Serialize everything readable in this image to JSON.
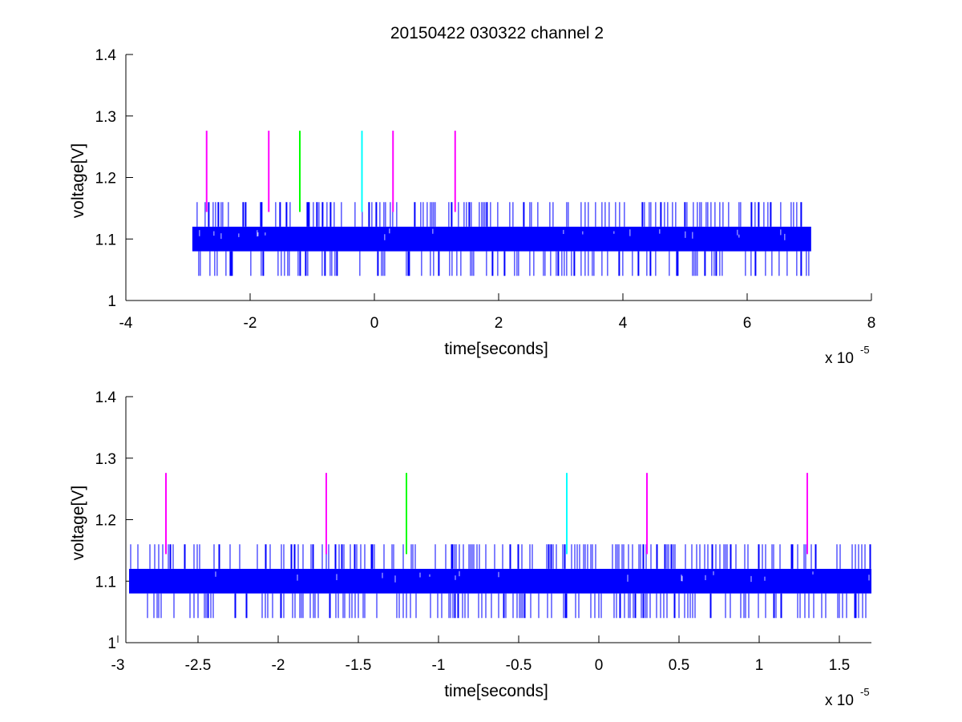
{
  "figure": {
    "title": "20150422 030322 channel 2"
  },
  "chart_data": [
    {
      "type": "line",
      "title": "20150422 030322 channel 2",
      "xlabel": "time[seconds]",
      "ylabel": "voltage[V]",
      "x_multiplier_text": "x 10",
      "x_multiplier_exponent": "-5",
      "xlim": [
        -4,
        8
      ],
      "ylim": [
        1,
        1.4
      ],
      "xticks": [
        -4,
        -2,
        0,
        2,
        4,
        6,
        8
      ],
      "xtick_labels": [
        "-4",
        "-2",
        "0",
        "2",
        "4",
        "6",
        "8"
      ],
      "yticks": [
        1,
        1.1,
        1.2,
        1.3,
        1.4
      ],
      "ytick_labels": [
        "1",
        "1.1",
        "1.2",
        "1.3",
        "1.4"
      ],
      "grid": false,
      "series": [
        {
          "color": "#0000ff",
          "x_range": [
            -2.93,
            7.03
          ],
          "baseline_band": [
            1.08,
            1.12
          ],
          "spike_high": 1.16,
          "spike_low": 1.04
        }
      ],
      "markers": [
        {
          "x": -2.7,
          "y_range": [
            1.144,
            1.276
          ],
          "color": "#ff00ff"
        },
        {
          "x": -1.7,
          "y_range": [
            1.144,
            1.276
          ],
          "color": "#ff00ff"
        },
        {
          "x": -1.2,
          "y_range": [
            1.144,
            1.276
          ],
          "color": "#00ff00"
        },
        {
          "x": -0.2,
          "y_range": [
            1.144,
            1.276
          ],
          "color": "#00ffff"
        },
        {
          "x": 0.3,
          "y_range": [
            1.144,
            1.276
          ],
          "color": "#ff00ff"
        },
        {
          "x": 1.3,
          "y_range": [
            1.144,
            1.276
          ],
          "color": "#ff00ff"
        }
      ]
    },
    {
      "type": "line",
      "title": "",
      "xlabel": "time[seconds]",
      "ylabel": "voltage[V]",
      "x_multiplier_text": "x 10",
      "x_multiplier_exponent": "-5",
      "xlim": [
        -2.95,
        1.7
      ],
      "ylim": [
        1,
        1.4
      ],
      "xticks": [
        -3,
        -2.5,
        -2,
        -1.5,
        -1,
        -0.5,
        0,
        0.5,
        1,
        1.5
      ],
      "xtick_labels": [
        "-3",
        "-2.5",
        "-2",
        "-1.5",
        "-1",
        "-0.5",
        "0",
        "0.5",
        "1",
        "1.5"
      ],
      "yticks": [
        1,
        1.1,
        1.2,
        1.3,
        1.4
      ],
      "ytick_labels": [
        "1",
        "1.1",
        "1.2",
        "1.3",
        "1.4"
      ],
      "grid": false,
      "series": [
        {
          "color": "#0000ff",
          "x_range": [
            -2.93,
            1.7
          ],
          "baseline_band": [
            1.08,
            1.12
          ],
          "spike_high": 1.16,
          "spike_low": 1.04
        }
      ],
      "markers": [
        {
          "x": -2.7,
          "y_range": [
            1.144,
            1.276
          ],
          "color": "#ff00ff"
        },
        {
          "x": -1.7,
          "y_range": [
            1.144,
            1.276
          ],
          "color": "#ff00ff"
        },
        {
          "x": -1.2,
          "y_range": [
            1.144,
            1.276
          ],
          "color": "#00ff00"
        },
        {
          "x": -0.2,
          "y_range": [
            1.144,
            1.276
          ],
          "color": "#00ffff"
        },
        {
          "x": 0.3,
          "y_range": [
            1.144,
            1.276
          ],
          "color": "#ff00ff"
        },
        {
          "x": 1.3,
          "y_range": [
            1.144,
            1.276
          ],
          "color": "#ff00ff"
        }
      ]
    }
  ]
}
